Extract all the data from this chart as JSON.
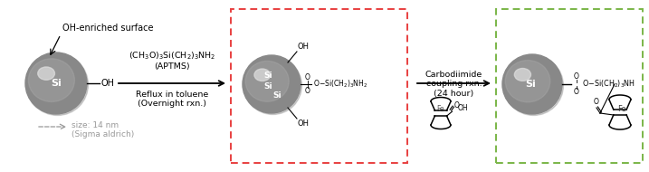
{
  "bg_color": "#ffffff",
  "red_box_color": "#e84040",
  "green_box_color": "#7ab648",
  "step1_reagent": "(CH$_3$O)$_3$Si(CH$_2$)$_3$NH$_2$\n(APTMS)",
  "step1_condition": "Reflux in toluene\n(Overnight rxn.)",
  "step2_reagent": "Carbodiimide\ncoupling rxn.\n(24 hour)",
  "label_oh_surface": "OH-enriched surface",
  "label_size1": "size: 14 nm",
  "label_size2": "(Sigma aldrich)"
}
